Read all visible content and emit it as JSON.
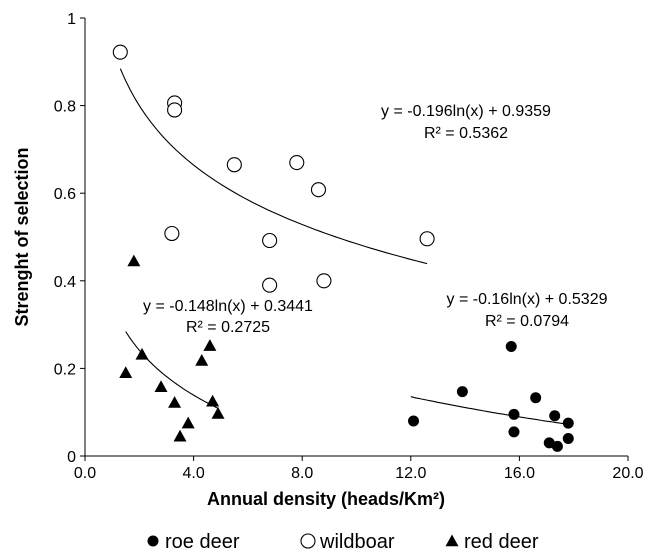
{
  "chart_data": {
    "type": "scatter",
    "xlabel": "Annual density (heads/Km²)",
    "ylabel": "Strenght of selection",
    "xlim": [
      0,
      20
    ],
    "ylim": [
      0,
      1
    ],
    "xticks": [
      "0.0",
      "4.0",
      "8.0",
      "12.0",
      "16.0",
      "20.0"
    ],
    "xtick_values": [
      0,
      4,
      8,
      12,
      16,
      20
    ],
    "yticks": [
      "0",
      "0.2",
      "0.4",
      "0.6",
      "0.8",
      "1"
    ],
    "ytick_values": [
      0,
      0.2,
      0.4,
      0.6,
      0.8,
      1
    ],
    "grid": false,
    "legend_position": "bottom",
    "series": [
      {
        "name": "roe deer",
        "marker": "filled-circle",
        "color": "#000000",
        "x": [
          12.1,
          13.9,
          15.7,
          15.8,
          15.8,
          16.6,
          17.1,
          17.3,
          17.4,
          17.8,
          17.8
        ],
        "y": [
          0.08,
          0.147,
          0.25,
          0.095,
          0.055,
          0.133,
          0.03,
          0.092,
          0.022,
          0.075,
          0.04
        ],
        "trend": {
          "equation": "y = -0.16ln(x) + 0.5329",
          "r2": "R² = 0.0794",
          "a": -0.16,
          "b": 0.5329,
          "x_range": [
            12.0,
            17.8
          ]
        }
      },
      {
        "name": "wildboar",
        "marker": "open-circle",
        "color": "#000000",
        "x": [
          1.3,
          3.3,
          3.3,
          5.5,
          7.8,
          8.6,
          3.2,
          6.8,
          6.8,
          8.8,
          12.6
        ],
        "y": [
          0.922,
          0.806,
          0.79,
          0.665,
          0.67,
          0.608,
          0.508,
          0.492,
          0.39,
          0.4,
          0.496
        ],
        "trend": {
          "equation": "y = -0.196ln(x) + 0.9359",
          "r2": "R² = 0.5362",
          "a": -0.196,
          "b": 0.9359,
          "x_range": [
            1.3,
            12.6
          ]
        }
      },
      {
        "name": "red deer",
        "marker": "filled-triangle",
        "color": "#000000",
        "x": [
          1.8,
          1.5,
          2.1,
          2.8,
          3.3,
          3.5,
          3.8,
          4.3,
          4.6,
          4.7,
          4.9
        ],
        "y": [
          0.445,
          0.19,
          0.232,
          0.158,
          0.122,
          0.045,
          0.075,
          0.218,
          0.252,
          0.125,
          0.097
        ],
        "trend": {
          "equation": "y = -0.148ln(x) + 0.3441",
          "r2": "R² = 0.2725",
          "a": -0.148,
          "b": 0.3441,
          "x_range": [
            1.5,
            4.9
          ]
        }
      }
    ]
  }
}
